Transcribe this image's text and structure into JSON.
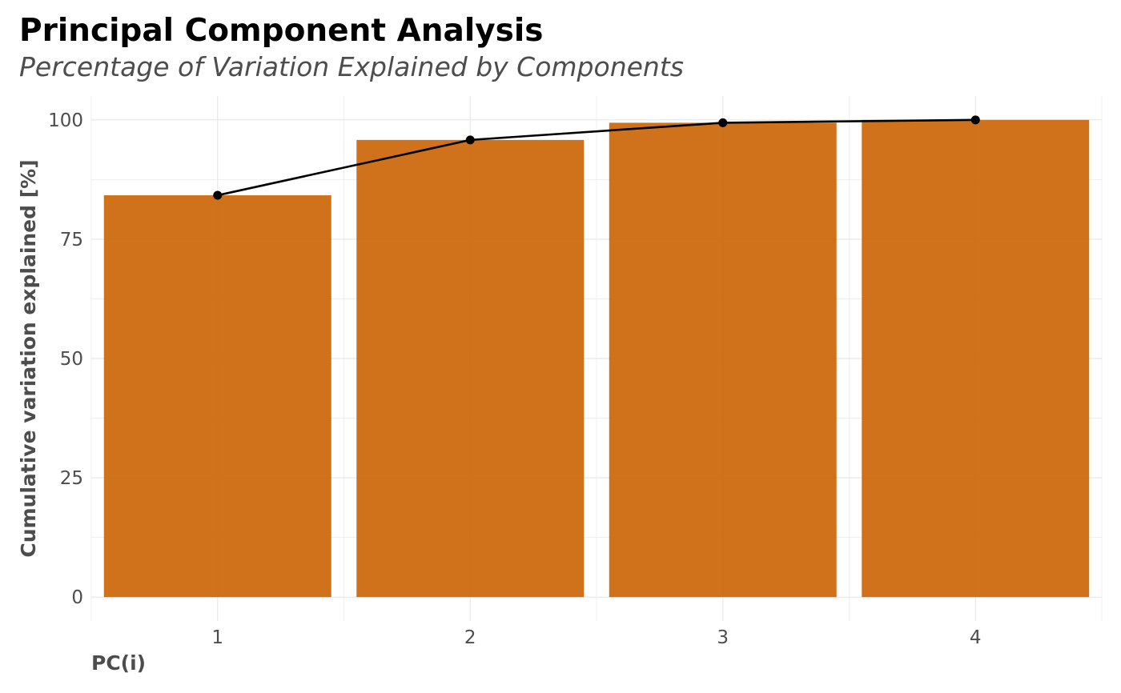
{
  "chart_data": {
    "type": "bar",
    "title": "Principal Component Analysis",
    "subtitle": "Percentage of Variation Explained by Components",
    "xlabel": "PC(i)",
    "ylabel": "Cumulative variation explained [%]",
    "categories": [
      "1",
      "2",
      "3",
      "4"
    ],
    "series": [
      {
        "type": "bar",
        "values": [
          84.2,
          95.8,
          99.4,
          100.0
        ]
      },
      {
        "type": "line",
        "values": [
          84.2,
          95.8,
          99.4,
          100.0
        ]
      }
    ],
    "ylim": [
      -5,
      105
    ],
    "yticks": [
      0,
      25,
      50,
      75,
      100
    ],
    "grid": true,
    "legend": "none",
    "colors": {
      "bar": "#cc6a0f",
      "line": "#000000",
      "grid": "#ebebeb"
    }
  }
}
